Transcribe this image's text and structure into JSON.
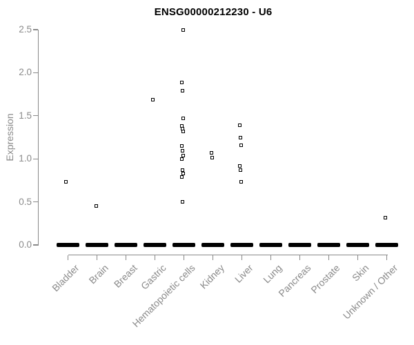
{
  "title": "ENSG00000212230 - U6",
  "colors": {
    "point": "#000000",
    "axis": "#888888",
    "axis_text": "#8a8a8a",
    "title_text": "#000000",
    "background": "#ffffff"
  },
  "chart_data": {
    "type": "scatter",
    "subtype": "strip-plot-by-category",
    "title": "ENSG00000212230 - U6",
    "xlabel": "",
    "ylabel": "Expression",
    "ylim": [
      0.0,
      2.5
    ],
    "ytick_labels": [
      "0.0",
      "0.5",
      "1.0",
      "1.5",
      "2.0",
      "2.5"
    ],
    "yticks": [
      0.0,
      0.5,
      1.0,
      1.5,
      2.0,
      2.5
    ],
    "grid": false,
    "legend": false,
    "marker": "open-square",
    "x_labels_rotation_deg": 45,
    "categories": [
      "Bladder",
      "Brain",
      "Breast",
      "Gastric",
      "Hematopoietic cells",
      "Kidney",
      "Liver",
      "Lung",
      "Pancreas",
      "Prostate",
      "Skin",
      "Unknown / Other"
    ],
    "zero_cluster_every_category": true,
    "points_by_category": {
      "Bladder": [
        0.73
      ],
      "Brain": [
        0.45
      ],
      "Breast": [],
      "Gastric": [
        1.69
      ],
      "Hematopoietic cells": [
        2.5,
        1.89,
        1.79,
        1.47,
        1.38,
        1.35,
        1.32,
        1.15,
        1.09,
        1.04,
        1.0,
        0.87,
        0.83,
        0.79,
        0.5
      ],
      "Kidney": [
        1.07,
        1.01
      ],
      "Liver": [
        1.39,
        1.25,
        1.16,
        0.92,
        0.87,
        0.73
      ],
      "Lung": [],
      "Pancreas": [],
      "Prostate": [],
      "Skin": [],
      "Unknown / Other": [
        0.32
      ]
    }
  }
}
